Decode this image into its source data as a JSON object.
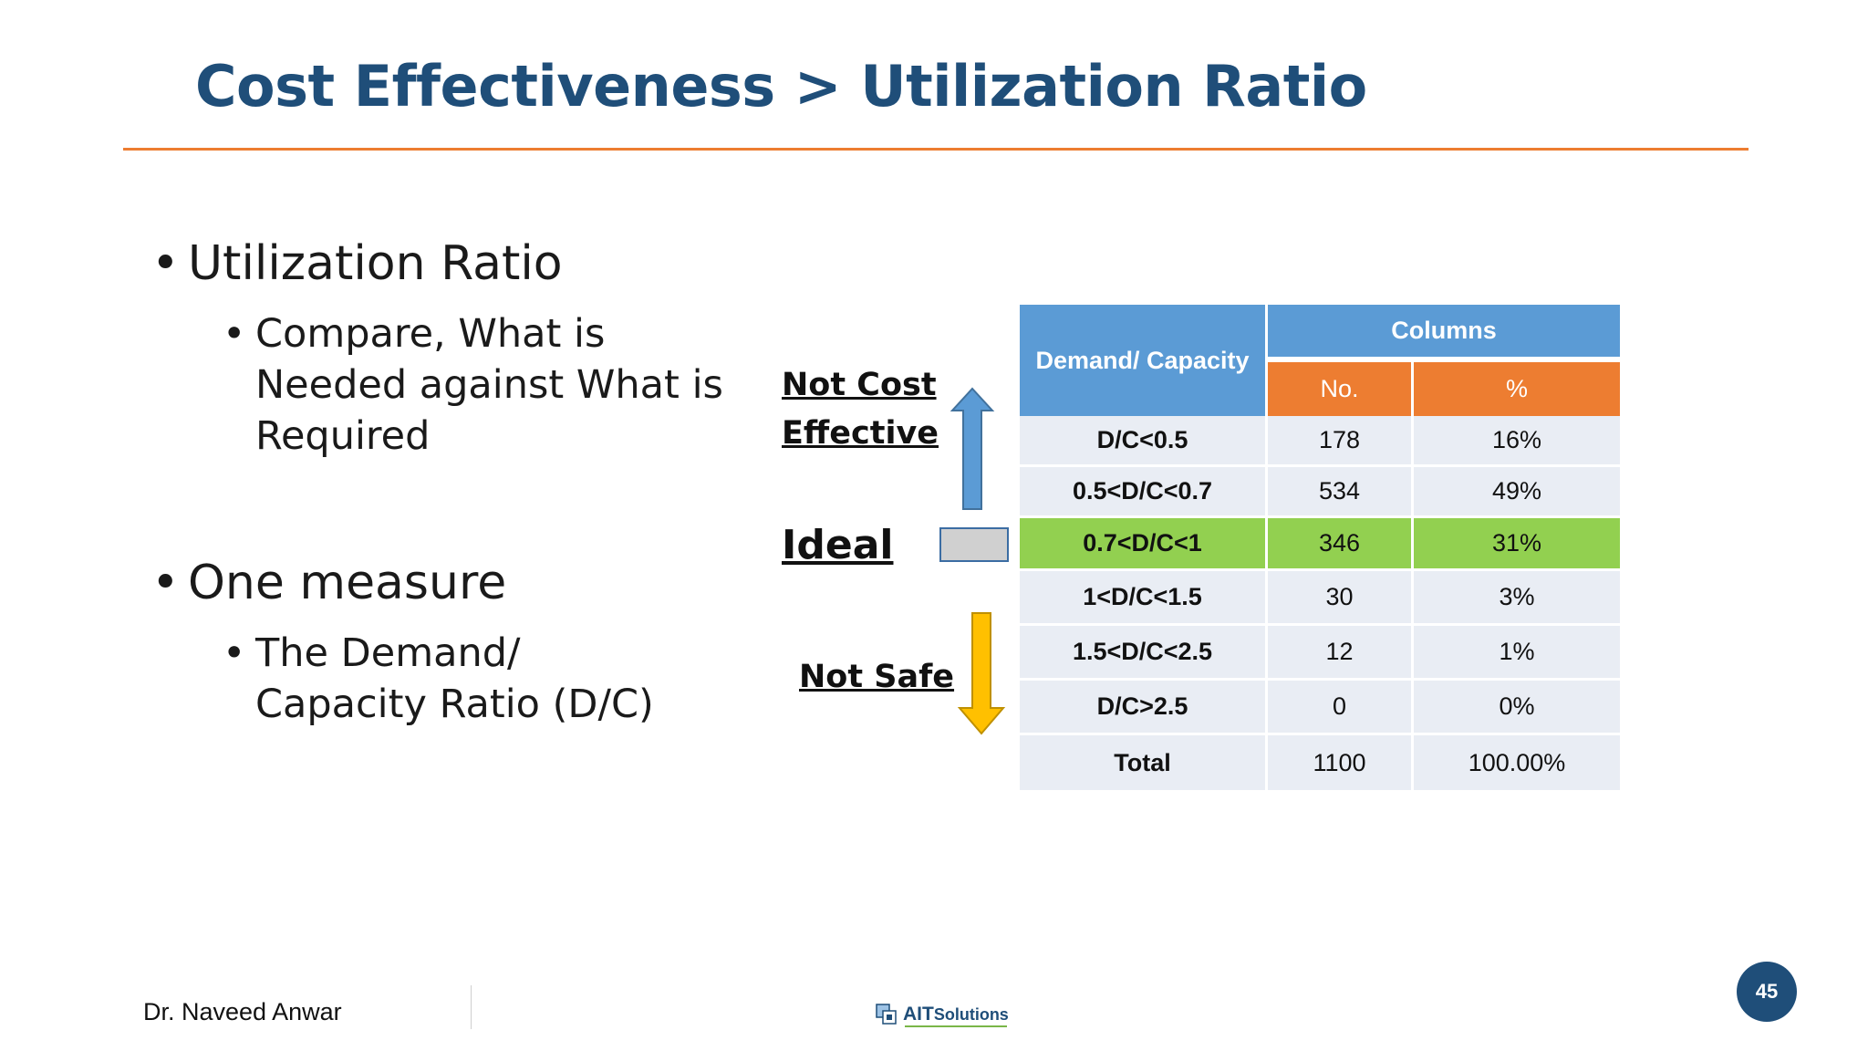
{
  "slide": {
    "title": "Cost Effectiveness > Utilization Ratio"
  },
  "bullets": [
    {
      "text": "Utilization Ratio",
      "sub": "Compare, What is Needed against What is Required"
    },
    {
      "text": "One measure",
      "sub": "The Demand/ Capacity Ratio (D/C)"
    }
  ],
  "scale": {
    "not_cost_effective_line1": "Not Cost",
    "not_cost_effective_line2": "Effective",
    "ideal": "Ideal",
    "not_safe": "Not Safe",
    "colors": {
      "up_arrow": "#5b9bd5",
      "down_arrow": "#ffc000",
      "ideal_box": "#d0d0d0"
    }
  },
  "table": {
    "header_left": "Demand/ Capacity",
    "header_group": "Columns",
    "col_no": "No.",
    "col_pct": "%",
    "rows": [
      {
        "label": "D/C<0.5",
        "no": "178",
        "pct": "16%"
      },
      {
        "label": "0.5<D/C<0.7",
        "no": "534",
        "pct": "49%"
      },
      {
        "label": "0.7<D/C<1",
        "no": "346",
        "pct": "31%"
      },
      {
        "label": "1<D/C<1.5",
        "no": "30",
        "pct": "3%"
      },
      {
        "label": "1.5<D/C<2.5",
        "no": "12",
        "pct": "1%"
      },
      {
        "label": "D/C>2.5",
        "no": "0",
        "pct": "0%"
      },
      {
        "label": "Total",
        "no": "1100",
        "pct": "100.00%"
      }
    ],
    "highlight_row": 2,
    "colors": {
      "header": "#5b9bd5",
      "subheader": "#ed7d31",
      "highlight": "#92d050",
      "row": "#e9edf4"
    }
  },
  "footer": {
    "author": "Dr. Naveed Anwar",
    "logo_text_ait": "AIT",
    "logo_text_solutions": "Solutions",
    "page_number": "45"
  }
}
